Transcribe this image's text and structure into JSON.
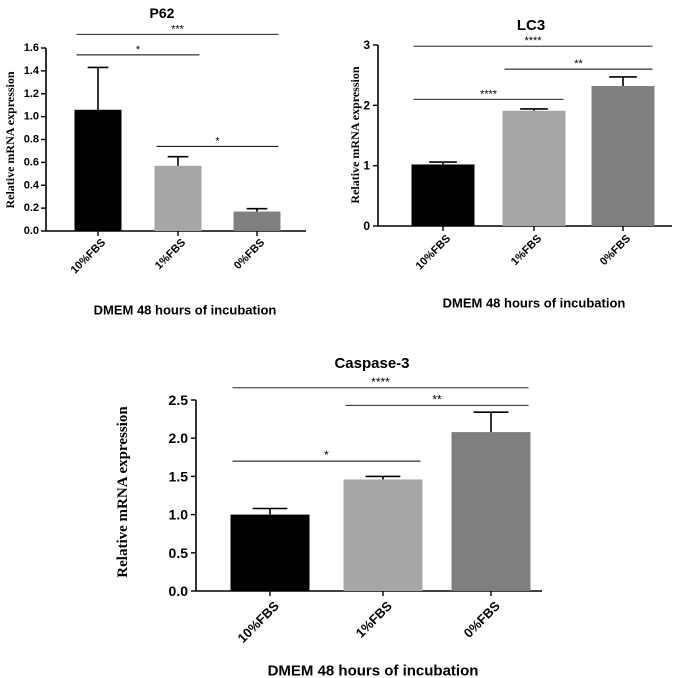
{
  "figure_caption": "",
  "chart_data": [
    {
      "id": "p62",
      "type": "bar",
      "title": "P62",
      "xlabel": "DMEM 48 hours of incubation",
      "ylabel": "Relative mRNA expression",
      "categories": [
        "10%FBS",
        "1%FBS",
        "0%FBS"
      ],
      "values": [
        1.06,
        0.57,
        0.17
      ],
      "errors": [
        0.37,
        0.08,
        0.025
      ],
      "colors": [
        "#000000",
        "#a6a6a6",
        "#7f7f7f"
      ],
      "ylim": [
        0,
        1.6
      ],
      "yticks": [
        "0.0",
        "0.2",
        "0.4",
        "0.6",
        "0.8",
        "1.0",
        "1.2",
        "1.4",
        "1.6"
      ],
      "significance": [
        {
          "from": 0,
          "to": 2,
          "label": "***",
          "y": 1.72
        },
        {
          "from": 0,
          "to": 1,
          "label": "*",
          "y": 1.54
        },
        {
          "from": 1,
          "to": 2,
          "label": "*",
          "y": 0.74
        }
      ]
    },
    {
      "id": "lc3",
      "type": "bar",
      "title": "LC3",
      "xlabel": "DMEM 48 hours of incubation",
      "ylabel": "Relative mRNA expression",
      "categories": [
        "10%FBS",
        "1%FBS",
        "0%FBS"
      ],
      "values": [
        1.02,
        1.91,
        2.32
      ],
      "errors": [
        0.04,
        0.03,
        0.15
      ],
      "colors": [
        "#000000",
        "#a6a6a6",
        "#7f7f7f"
      ],
      "ylim": [
        0,
        3
      ],
      "yticks": [
        "0",
        "1",
        "2",
        "3"
      ],
      "significance": [
        {
          "from": 0,
          "to": 2,
          "label": "****",
          "y": 2.98
        },
        {
          "from": 1,
          "to": 2,
          "label": "**",
          "y": 2.6
        },
        {
          "from": 0,
          "to": 1,
          "label": "****",
          "y": 2.1
        }
      ]
    },
    {
      "id": "caspase3",
      "type": "bar",
      "title": "Caspase-3",
      "xlabel": "DMEM 48 hours of incubation",
      "ylabel": "Relative mRNA expression",
      "categories": [
        "10%FBS",
        "1%FBS",
        "0%FBS"
      ],
      "values": [
        1.0,
        1.46,
        2.08
      ],
      "errors": [
        0.08,
        0.04,
        0.26
      ],
      "colors": [
        "#000000",
        "#a6a6a6",
        "#7f7f7f"
      ],
      "ylim": [
        0,
        2.5
      ],
      "yticks": [
        "0.0",
        "0.5",
        "1.0",
        "1.5",
        "2.0",
        "2.5"
      ],
      "significance": [
        {
          "from": 0,
          "to": 2,
          "label": "****",
          "y": 2.66
        },
        {
          "from": 1,
          "to": 2,
          "label": "**",
          "y": 2.43
        },
        {
          "from": 0,
          "to": 1,
          "label": "*",
          "y": 1.7
        }
      ]
    }
  ]
}
